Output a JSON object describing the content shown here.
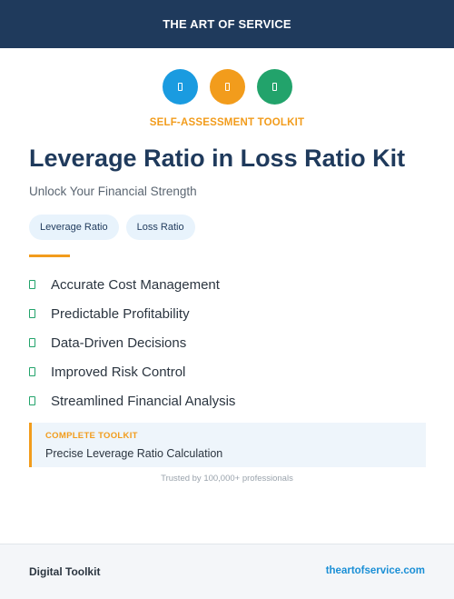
{
  "header": {
    "brand": "THE ART OF SERVICE"
  },
  "icons": [
    {
      "name": "document-icon",
      "color": "#1a9be0"
    },
    {
      "name": "document-icon",
      "color": "#f29c1c"
    },
    {
      "name": "document-icon",
      "color": "#22a36b"
    }
  ],
  "eyebrow": "SELF-ASSESSMENT TOOLKIT",
  "title": "Leverage Ratio in Loss Ratio Kit",
  "subtitle": "Unlock Your Financial Strength",
  "tags": [
    "Leverage Ratio",
    "Loss Ratio"
  ],
  "features": [
    "Accurate Cost Management",
    "Predictable Profitability",
    "Data-Driven Decisions",
    "Improved Risk Control",
    "Streamlined Financial Analysis"
  ],
  "callout": {
    "label": "COMPLETE TOOLKIT",
    "text": "Precise Leverage Ratio Calculation"
  },
  "trusted": "Trusted by 100,000+ professionals",
  "footer": {
    "left": "Digital Toolkit",
    "right": "theartofservice.com"
  },
  "colors": {
    "navy": "#1f3a5c",
    "orange": "#f29c1c",
    "blue": "#1a9be0",
    "green": "#22a36b"
  }
}
